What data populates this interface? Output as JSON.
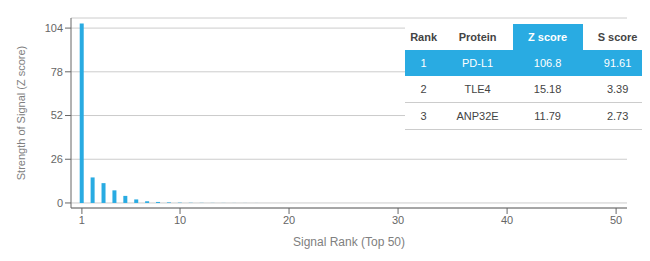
{
  "chart_data": {
    "type": "bar",
    "xlabel": "Signal Rank (Top 50)",
    "ylabel": "Strength of Signal (Z score)",
    "x": [
      1,
      2,
      3,
      4,
      5,
      6,
      7,
      8,
      9,
      10,
      11,
      12,
      13,
      14,
      15,
      16,
      17,
      18,
      19,
      20,
      21,
      22,
      23,
      24,
      25,
      26,
      27,
      28,
      29,
      30,
      31,
      32,
      33,
      34,
      35,
      36,
      37,
      38,
      39,
      40,
      41,
      42,
      43,
      44,
      45,
      46,
      47,
      48,
      49,
      50
    ],
    "values": [
      106.8,
      15.18,
      11.79,
      7.5,
      4.2,
      2.1,
      1.0,
      0.6,
      0.35,
      0.2,
      0.12,
      0.08,
      0.06,
      0.045,
      0.035,
      0.028,
      0.022,
      0.018,
      0.015,
      0.012,
      0.01,
      0.009,
      0.008,
      0.007,
      0.006,
      0.005,
      0.005,
      0.004,
      0.004,
      0.003,
      0.003,
      0.003,
      0.003,
      0.002,
      0.002,
      0.002,
      0.002,
      0.002,
      0.002,
      0.001,
      0.001,
      0.001,
      0.001,
      0.001,
      0.001,
      0.001,
      0.001,
      0.001,
      0.001,
      0.001
    ],
    "color": "#29ABE2",
    "xlim": [
      0,
      51
    ],
    "xticks": [
      1,
      10,
      20,
      30,
      40,
      50
    ],
    "ylim": [
      -3,
      110
    ],
    "yticks": [
      0,
      26,
      52,
      78,
      104
    ],
    "grid": true,
    "table": {
      "columns": [
        "Rank",
        "Protein",
        "Z score",
        "S score"
      ],
      "rows": [
        [
          "1",
          "PD-L1",
          "106.8",
          "91.61"
        ],
        [
          "2",
          "TLE4",
          "15.18",
          "3.39"
        ],
        [
          "3",
          "ANP32E",
          "11.79",
          "2.73"
        ]
      ]
    }
  }
}
